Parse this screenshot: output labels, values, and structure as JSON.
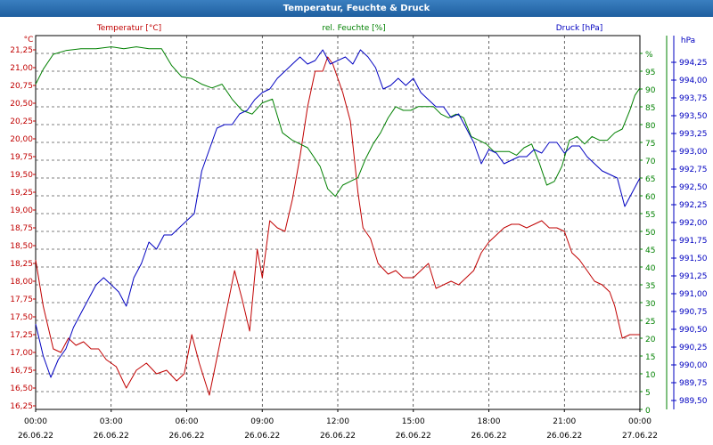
{
  "window": {
    "title": "Temperatur, Feuchte & Druck"
  },
  "chart_data": {
    "type": "line",
    "title": "Temperatur, Feuchte & Druck",
    "grid": true,
    "x_ticks": [
      {
        "time": "00:00",
        "date": "26.06.22"
      },
      {
        "time": "03:00",
        "date": "26.06.22"
      },
      {
        "time": "06:00",
        "date": "26.06.22"
      },
      {
        "time": "09:00",
        "date": "26.06.22"
      },
      {
        "time": "12:00",
        "date": "26.06.22"
      },
      {
        "time": "15:00",
        "date": "26.06.22"
      },
      {
        "time": "18:00",
        "date": "26.06.22"
      },
      {
        "time": "21:00",
        "date": "26.06.22"
      },
      {
        "time": "00:00",
        "date": "27.06.22"
      }
    ],
    "xlim_hours": [
      0,
      24
    ],
    "axes": {
      "temperature": {
        "label": "Temperatur [°C]",
        "unit": "°C",
        "side": "left",
        "color": "#c00000",
        "ylim": [
          16.25,
          21.5
        ],
        "ticks": [
          "16,25",
          "16,50",
          "16,75",
          "17,00",
          "17,25",
          "17,50",
          "17,75",
          "18,00",
          "18,25",
          "18,50",
          "18,75",
          "19,00",
          "19,25",
          "19,50",
          "19,75",
          "20,00",
          "20,25",
          "20,50",
          "20,75",
          "21,00",
          "21,25"
        ]
      },
      "humidity": {
        "label": "rel. Feuchte [%]",
        "unit": "%",
        "side": "right",
        "color": "#008000",
        "ylim": [
          0,
          100
        ],
        "ticks": [
          "0",
          "5",
          "10",
          "15",
          "20",
          "25",
          "30",
          "35",
          "40",
          "45",
          "50",
          "55",
          "60",
          "65",
          "70",
          "75",
          "80",
          "85",
          "90",
          "95",
          "%"
        ]
      },
      "pressure": {
        "label": "Druck [hPa]",
        "unit": "hPa",
        "side": "right",
        "color": "#0000c0",
        "ylim": [
          989.25,
          994.5
        ],
        "ticks": [
          "989,50",
          "989,75",
          "990,00",
          "990,25",
          "990,50",
          "990,75",
          "991,00",
          "991,25",
          "991,50",
          "991,75",
          "992,00",
          "992,25",
          "992,50",
          "992,75",
          "993,00",
          "993,25",
          "993,50",
          "993,75",
          "994,00",
          "994,25"
        ]
      }
    },
    "series": [
      {
        "name": "Temperatur [°C]",
        "axis": "temperature",
        "color": "#c00000",
        "x": [
          0,
          0.3,
          0.7,
          1.0,
          1.3,
          1.6,
          1.9,
          2.2,
          2.5,
          2.8,
          3.2,
          3.6,
          4.0,
          4.4,
          4.8,
          5.2,
          5.6,
          5.9,
          6.2,
          6.5,
          6.9,
          7.1,
          7.5,
          7.9,
          8.2,
          8.5,
          8.8,
          9.0,
          9.3,
          9.6,
          9.9,
          10.2,
          10.5,
          10.8,
          11.1,
          11.4,
          11.6,
          11.8,
          12.0,
          12.2,
          12.5,
          12.8,
          13.0,
          13.3,
          13.6,
          14.0,
          14.3,
          14.6,
          15.0,
          15.3,
          15.6,
          15.9,
          16.2,
          16.5,
          16.8,
          17.1,
          17.4,
          17.7,
          18.0,
          18.3,
          18.6,
          18.9,
          19.2,
          19.5,
          19.8,
          20.1,
          20.4,
          20.7,
          21.0,
          21.3,
          21.6,
          21.9,
          22.2,
          22.5,
          22.8,
          23.0,
          23.3,
          23.6,
          23.8,
          24.0
        ],
        "values": [
          18.35,
          17.7,
          17.1,
          17.05,
          17.25,
          17.15,
          17.2,
          17.1,
          17.1,
          16.95,
          16.85,
          16.55,
          16.8,
          16.9,
          16.75,
          16.8,
          16.65,
          16.75,
          17.3,
          16.9,
          16.45,
          16.8,
          17.5,
          18.2,
          17.8,
          17.35,
          18.5,
          18.1,
          18.9,
          18.8,
          18.75,
          19.2,
          19.8,
          20.5,
          21.0,
          21.0,
          21.2,
          21.1,
          20.9,
          20.7,
          20.3,
          19.3,
          18.8,
          18.65,
          18.3,
          18.15,
          18.2,
          18.1,
          18.1,
          18.2,
          18.3,
          17.95,
          18.0,
          18.05,
          18.0,
          18.1,
          18.2,
          18.45,
          18.6,
          18.7,
          18.8,
          18.85,
          18.85,
          18.8,
          18.85,
          18.9,
          18.8,
          18.8,
          18.75,
          18.45,
          18.35,
          18.2,
          18.05,
          18.0,
          17.9,
          17.7,
          17.25,
          17.3,
          17.3,
          17.3
        ]
      },
      {
        "name": "rel. Feuchte [%]",
        "axis": "humidity",
        "color": "#008000",
        "x": [
          0,
          0.3,
          0.7,
          1.2,
          1.8,
          2.4,
          3.0,
          3.5,
          4.0,
          4.5,
          5.0,
          5.4,
          5.8,
          6.2,
          6.6,
          7.0,
          7.4,
          7.8,
          8.2,
          8.6,
          9.0,
          9.4,
          9.8,
          10.2,
          10.5,
          10.8,
          11.0,
          11.3,
          11.6,
          11.9,
          12.2,
          12.5,
          12.8,
          13.1,
          13.4,
          13.7,
          14.0,
          14.3,
          14.6,
          14.9,
          15.2,
          15.5,
          15.8,
          16.1,
          16.4,
          16.7,
          17.0,
          17.3,
          17.6,
          17.9,
          18.2,
          18.5,
          18.8,
          19.1,
          19.4,
          19.7,
          20.0,
          20.3,
          20.6,
          20.9,
          21.2,
          21.5,
          21.8,
          22.1,
          22.4,
          22.7,
          23.0,
          23.3,
          23.6,
          23.8,
          24.0
        ],
        "values": [
          87,
          91,
          95,
          96,
          96.5,
          96.5,
          97,
          96.5,
          97,
          96.5,
          96.5,
          92,
          89,
          88.5,
          87,
          86,
          87,
          83,
          80,
          79,
          82,
          83,
          74,
          72,
          71,
          70,
          68,
          65,
          59,
          57,
          60,
          61,
          62,
          67,
          71,
          74,
          78,
          81,
          80,
          80,
          81,
          81,
          81,
          79,
          78,
          79,
          78,
          73,
          72,
          71,
          69,
          69,
          69,
          68,
          70,
          71,
          66,
          60,
          61,
          65,
          72,
          73,
          71,
          73,
          72,
          72,
          74,
          75,
          80,
          84,
          86
        ]
      },
      {
        "name": "Druck [hPa]",
        "axis": "pressure",
        "color": "#0000c0",
        "x": [
          0,
          0.3,
          0.6,
          0.9,
          1.2,
          1.5,
          1.8,
          2.1,
          2.4,
          2.7,
          3.0,
          3.3,
          3.6,
          3.9,
          4.2,
          4.5,
          4.8,
          5.1,
          5.4,
          5.7,
          6.0,
          6.3,
          6.6,
          6.9,
          7.2,
          7.5,
          7.8,
          8.1,
          8.4,
          8.7,
          9.0,
          9.3,
          9.6,
          9.9,
          10.2,
          10.5,
          10.8,
          11.1,
          11.4,
          11.7,
          12.0,
          12.3,
          12.6,
          12.9,
          13.2,
          13.5,
          13.8,
          14.1,
          14.4,
          14.7,
          15.0,
          15.3,
          15.6,
          15.9,
          16.2,
          16.5,
          16.8,
          17.1,
          17.4,
          17.7,
          18.0,
          18.3,
          18.6,
          18.9,
          19.2,
          19.5,
          19.8,
          20.1,
          20.4,
          20.7,
          21.0,
          21.3,
          21.6,
          21.9,
          22.2,
          22.5,
          22.8,
          23.1,
          23.4,
          23.7,
          24.0
        ],
        "values": [
          990.45,
          990.0,
          989.7,
          989.95,
          990.1,
          990.4,
          990.6,
          990.8,
          991.0,
          991.1,
          991.0,
          990.9,
          990.7,
          991.1,
          991.3,
          991.6,
          991.5,
          991.7,
          991.7,
          991.8,
          991.9,
          992.0,
          992.6,
          992.9,
          993.2,
          993.25,
          993.25,
          993.4,
          993.45,
          993.6,
          993.7,
          993.75,
          993.9,
          994.0,
          994.1,
          994.2,
          994.1,
          994.15,
          994.3,
          994.1,
          994.15,
          994.2,
          994.1,
          994.3,
          994.2,
          994.05,
          993.75,
          993.8,
          993.9,
          993.8,
          993.9,
          993.7,
          993.6,
          993.5,
          993.5,
          993.35,
          993.4,
          993.2,
          993.0,
          992.7,
          992.9,
          992.85,
          992.7,
          992.75,
          992.8,
          992.8,
          992.9,
          992.85,
          993.0,
          993.0,
          992.85,
          992.95,
          992.95,
          992.8,
          992.7,
          992.6,
          992.55,
          992.5,
          992.1,
          992.3,
          992.5
        ]
      }
    ],
    "legend_positions": {
      "temperature": "top-left",
      "humidity": "top-center",
      "pressure": "top-right"
    }
  }
}
